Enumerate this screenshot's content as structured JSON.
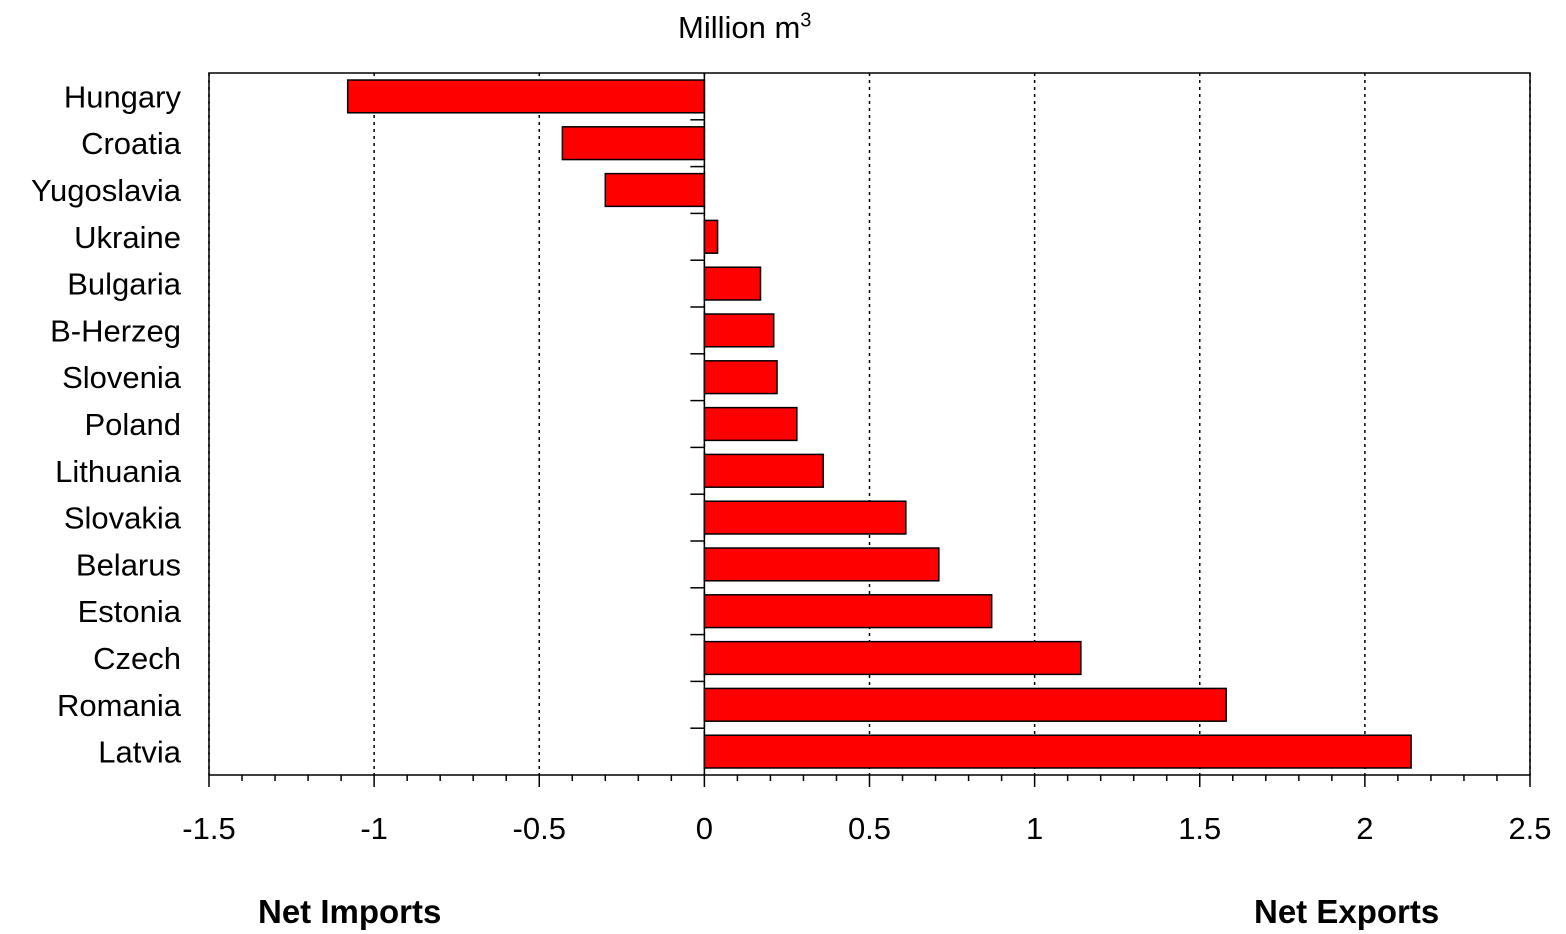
{
  "unit_label": {
    "text": "Million m",
    "superscript": "3"
  },
  "footer": {
    "left": "Net Imports",
    "right": "Net Exports"
  },
  "colors": {
    "bar_fill": "#ff0000",
    "bar_stroke": "#000000",
    "grid": "#000000",
    "background": "#ffffff"
  },
  "chart_data": {
    "type": "bar",
    "orientation": "horizontal",
    "title": "",
    "xlabel": "Million m3",
    "ylabel": "",
    "xlim": [
      -1.5,
      2.5
    ],
    "x_ticks": [
      "-1.5",
      "-1",
      "-0.5",
      "0",
      "0.5",
      "1",
      "1.5",
      "2",
      "2.5"
    ],
    "x_tick_values": [
      -1.5,
      -1,
      -0.5,
      0,
      0.5,
      1,
      1.5,
      2,
      2.5
    ],
    "grid": "vertical dotted",
    "legend": "none",
    "categories": [
      "Hungary",
      "Croatia",
      "Yugoslavia",
      "Ukraine",
      "Bulgaria",
      "B-Herzeg",
      "Slovenia",
      "Poland",
      "Lithuania",
      "Slovakia",
      "Belarus",
      "Estonia",
      "Czech",
      "Romania",
      "Latvia"
    ],
    "values": [
      -1.08,
      -0.43,
      -0.3,
      0.04,
      0.17,
      0.21,
      0.22,
      0.28,
      0.36,
      0.61,
      0.71,
      0.87,
      1.14,
      1.58,
      2.14
    ]
  }
}
